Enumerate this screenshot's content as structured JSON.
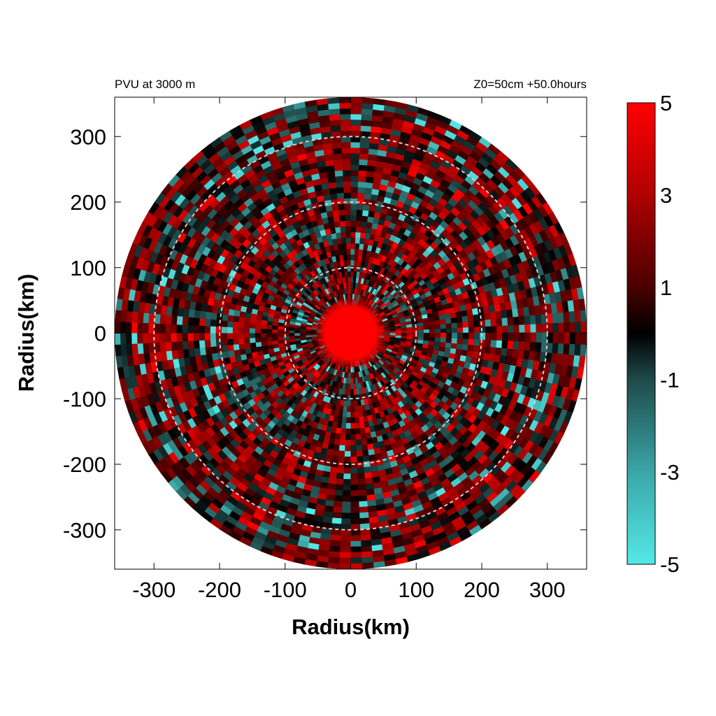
{
  "chart_data": {
    "type": "heatmap",
    "title_left": "PVU at  3000 m",
    "title_right": "Z0=50cm  +50.0hours",
    "xlabel": "Radius(km)",
    "ylabel": "Radius(km)",
    "xlim": [
      -360,
      360
    ],
    "ylim": [
      -360,
      360
    ],
    "xticks": [
      -300,
      -200,
      -100,
      0,
      100,
      200,
      300
    ],
    "yticks": [
      300,
      200,
      100,
      0,
      -100,
      -200,
      -300
    ],
    "reference_circles_km": [
      100,
      200,
      300
    ],
    "domain_radius_km": 360,
    "colorbar": {
      "min": -5,
      "max": 5,
      "ticks": [
        5,
        3,
        1,
        -1,
        -3,
        -5
      ],
      "colors": [
        {
          "value": -5,
          "color": "#55e8e8"
        },
        {
          "value": -3,
          "color": "#3aa6a6"
        },
        {
          "value": -1,
          "color": "#1f4a4a"
        },
        {
          "value": 0,
          "color": "#000000"
        },
        {
          "value": 1,
          "color": "#4a0000"
        },
        {
          "value": 3,
          "color": "#b00000"
        },
        {
          "value": 5,
          "color": "#ff0000"
        }
      ]
    },
    "field_description_values": {
      "core_radius_km": 45,
      "core_value": 5
    }
  }
}
